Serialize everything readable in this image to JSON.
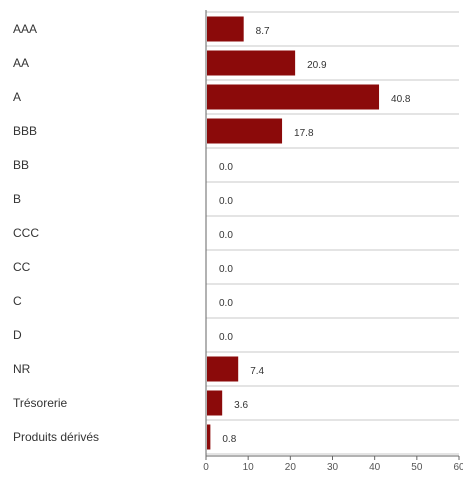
{
  "chart_data": {
    "type": "bar",
    "orientation": "horizontal",
    "categories": [
      "AAA",
      "AA",
      "A",
      "BBB",
      "BB",
      "B",
      "CCC",
      "CC",
      "C",
      "D",
      "NR",
      "Trésorerie",
      "Produits dérivés"
    ],
    "values": [
      8.7,
      20.9,
      40.8,
      17.8,
      0.0,
      0.0,
      0.0,
      0.0,
      0.0,
      0.0,
      7.4,
      3.6,
      0.8
    ],
    "value_labels": [
      "8.7",
      "20.9",
      "40.8",
      "17.8",
      "0.0",
      "0.0",
      "0.0",
      "0.0",
      "0.0",
      "0.0",
      "7.4",
      "3.6",
      "0.8"
    ],
    "xticks": [
      "0",
      "10",
      "20",
      "30",
      "40",
      "50",
      "60"
    ],
    "xlim": [
      0,
      60
    ],
    "bar_color": "#8b0a0a",
    "grid": true,
    "title": "",
    "xlabel": "",
    "ylabel": ""
  }
}
